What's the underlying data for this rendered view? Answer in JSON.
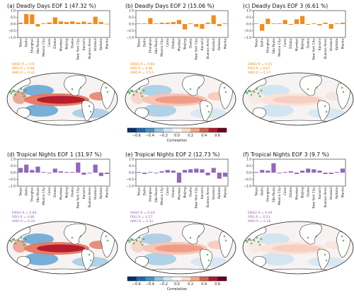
{
  "cities": [
    "Tokyo",
    "Delhi",
    "Shanghai",
    "São Paulo",
    "Mexico City",
    "Cairo",
    "Dhaka",
    "Mumbai",
    "Beijing",
    "Osaka",
    "New York City",
    "Karachi",
    "Buenos Aires",
    "Istanbul",
    "Kolkata",
    "Manila"
  ],
  "colorbar": {
    "label": "Correlation",
    "ticks": [
      "−0.6",
      "−0.4",
      "−0.2",
      "0.0",
      "0.2",
      "0.4",
      "0.6"
    ],
    "colors": [
      "#08306b",
      "#2166ac",
      "#4393c3",
      "#92c5de",
      "#d1e5f0",
      "#f7f7f7",
      "#fddbc7",
      "#f4a582",
      "#d6604d",
      "#b2182b",
      "#67001f"
    ]
  },
  "chart_data": [
    {
      "type": "bar",
      "title": "(a) Deadly Days EOF 1 (47.32 %)",
      "color": "#f28c1a",
      "ylim": [
        -1.0,
        1.0
      ],
      "yticks": [
        "1.0",
        "0.5",
        "0.0",
        "−0.5",
        "−1.0"
      ],
      "categories": [
        "Tokyo",
        "Delhi",
        "Shanghai",
        "São Paulo",
        "Mexico City",
        "Cairo",
        "Dhaka",
        "Mumbai",
        "Beijing",
        "Osaka",
        "New York City",
        "Karachi",
        "Buenos Aires",
        "Istanbul",
        "Kolkata",
        "Manila"
      ],
      "values": [
        0.1,
        0.75,
        0.72,
        -0.18,
        0.05,
        0.12,
        0.5,
        0.2,
        0.15,
        0.2,
        0.12,
        0.18,
        0.1,
        0.55,
        0.15,
        0.02
      ],
      "stats": [
        "ENSO R = 0.9",
        "PDO R = 0.86",
        "AMO R = 0.41"
      ],
      "map_pattern": "strong"
    },
    {
      "type": "bar",
      "title": "(b) Deadly Days EOF 2 (15.06 %)",
      "color": "#f28c1a",
      "ylim": [
        -1.0,
        1.0
      ],
      "yticks": [
        "1.0",
        "0.5",
        "0.0",
        "−0.5",
        "−1.0"
      ],
      "categories": [
        "Tokyo",
        "Delhi",
        "Shanghai",
        "São Paulo",
        "Mexico City",
        "Cairo",
        "Dhaka",
        "Mumbai",
        "Beijing",
        "Osaka",
        "New York City",
        "Karachi",
        "Buenos Aires",
        "Istanbul",
        "Kolkata",
        "Manila"
      ],
      "values": [
        0.05,
        0.05,
        0.45,
        0.05,
        0.1,
        0.1,
        0.15,
        0.3,
        -0.4,
        0.05,
        -0.2,
        -0.35,
        0.1,
        0.65,
        -0.15,
        0.05
      ],
      "stats": [
        "ENSO R = 0.84",
        "PDO R = 0.86",
        "AMO R = 0.52"
      ],
      "map_pattern": "weak"
    },
    {
      "type": "bar",
      "title": "(c) Deadly Days EOF 3 (6.61 %)",
      "color": "#f28c1a",
      "ylim": [
        -1.0,
        1.0
      ],
      "yticks": [
        "1.0",
        "0.5",
        "0.0",
        "−0.5",
        "−1.0"
      ],
      "categories": [
        "Tokyo",
        "Delhi",
        "Shanghai",
        "São Paulo",
        "Mexico City",
        "Cairo",
        "Dhaka",
        "Mumbai",
        "Beijing",
        "Osaka",
        "New York City",
        "Karachi",
        "Buenos Aires",
        "Istanbul",
        "Kolkata",
        "Manila"
      ],
      "values": [
        0.05,
        -0.5,
        0.4,
        0.05,
        0.05,
        0.3,
        -0.05,
        0.35,
        0.6,
        -0.05,
        0.05,
        -0.1,
        0.1,
        -0.35,
        0.05,
        0.1
      ],
      "stats": [
        "ENSO R = 0.41",
        "PDO R = 0.47",
        "AMO R = 0.37"
      ],
      "map_pattern": "faint"
    },
    {
      "type": "bar",
      "title": "(d) Tropical Nights EOF 1 (31.97 %)",
      "color": "#9467bd",
      "ylim": [
        -1.0,
        1.0
      ],
      "yticks": [
        "1.0",
        "0.5",
        "0.0",
        "−0.5",
        "−1.0"
      ],
      "categories": [
        "Tokyo",
        "Delhi",
        "Shanghai",
        "São Paulo",
        "Mexico City",
        "Cairo",
        "Dhaka",
        "Mumbai",
        "Beijing",
        "Osaka",
        "New York City",
        "Karachi",
        "Buenos Aires",
        "Istanbul",
        "Kolkata",
        "Manila"
      ],
      "values": [
        0.35,
        0.6,
        0.2,
        0.45,
        0.05,
        -0.05,
        0.3,
        0.1,
        0.05,
        0.05,
        0.75,
        -0.15,
        -0.05,
        0.6,
        -0.25,
        -0.1
      ],
      "stats": [
        "ENSO R = 0.89",
        "PDO R = 0.86",
        "AMO R = 0.44"
      ],
      "map_pattern": "strong"
    },
    {
      "type": "bar",
      "title": "(e) Tropical Nights EOF 2 (12.73 %)",
      "color": "#9467bd",
      "ylim": [
        -1.0,
        1.0
      ],
      "yticks": [
        "1.0",
        "0.5",
        "0.0",
        "−0.5",
        "−1.0"
      ],
      "categories": [
        "Tokyo",
        "Delhi",
        "Shanghai",
        "São Paulo",
        "Mexico City",
        "Cairo",
        "Dhaka",
        "Mumbai",
        "Beijing",
        "Osaka",
        "New York City",
        "Karachi",
        "Buenos Aires",
        "Istanbul",
        "Kolkata",
        "Manila"
      ],
      "values": [
        0.05,
        -0.1,
        0.05,
        -0.05,
        0.1,
        0.2,
        0.15,
        -0.75,
        0.2,
        0.25,
        0.3,
        0.25,
        -0.2,
        0.35,
        -0.45,
        -0.3
      ],
      "stats": [
        "ENSO R = 0.49",
        "PDO R = 0.57",
        "AMO R = 0.31"
      ],
      "map_pattern": "weak"
    },
    {
      "type": "bar",
      "title": "(f) Tropical Nights EOF 3 (9.7 %)",
      "color": "#9467bd",
      "ylim": [
        -1.0,
        1.0
      ],
      "yticks": [
        "1.0",
        "0.5",
        "0.0",
        "−0.5",
        "−1.0"
      ],
      "categories": [
        "Tokyo",
        "Delhi",
        "Shanghai",
        "São Paulo",
        "Mexico City",
        "Cairo",
        "Dhaka",
        "Mumbai",
        "Beijing",
        "Osaka",
        "New York City",
        "Karachi",
        "Buenos Aires",
        "Istanbul",
        "Kolkata",
        "Manila"
      ],
      "values": [
        0.05,
        0.2,
        0.15,
        0.7,
        -0.05,
        0.05,
        0.1,
        -0.1,
        0.15,
        0.3,
        0.25,
        0.15,
        -0.1,
        -0.1,
        0.05,
        0.3
      ],
      "stats": [
        "ENSO R = 0.09",
        "PDO R = 0.53",
        "AMO R = 0.18"
      ],
      "map_pattern": "faint"
    }
  ]
}
